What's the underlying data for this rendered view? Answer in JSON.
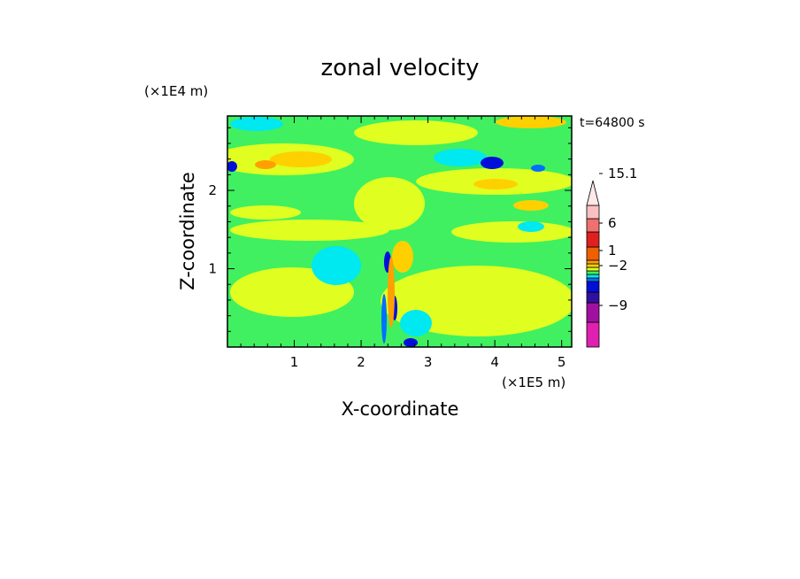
{
  "chart_data": {
    "type": "heatmap",
    "title": "zonal velocity",
    "xlabel": "X-coordinate",
    "ylabel": "Z-coordinate",
    "x_unit": "(×1E5 m)",
    "y_unit": "(×1E4 m)",
    "time_label": "t=64800 s",
    "x_ticks": [
      "1",
      "2",
      "3",
      "4",
      "5"
    ],
    "y_ticks": [
      "1",
      "2"
    ],
    "xlim": [
      0,
      5.15
    ],
    "ylim": [
      0,
      2.95
    ],
    "colorbar": {
      "labels": [
        "15.1",
        "6",
        "1",
        "−2",
        "−9"
      ],
      "bins": [
        {
          "color": "#e020b0"
        },
        {
          "color": "#a010a0"
        },
        {
          "color": "#3010a0"
        },
        {
          "color": "#0010d8"
        },
        {
          "color": "#0070ff"
        },
        {
          "color": "#00e8f0"
        },
        {
          "color": "#40f060"
        },
        {
          "color": "#e0ff20"
        },
        {
          "color": "#ffd000"
        },
        {
          "color": "#ffa000"
        },
        {
          "color": "#f06000"
        },
        {
          "color": "#e02020"
        },
        {
          "color": "#f07070"
        },
        {
          "color": "#f8c0c0"
        },
        {
          "color": "#ffe8e8"
        }
      ]
    },
    "field_colors": {
      "background": "#40f060",
      "positive_weak": "#e0ff20",
      "positive": "#ffd000",
      "positive_strong": "#ffa000",
      "negative_weak": "#00e8f0",
      "negative": "#0070ff",
      "negative_strong": "#0010d8"
    }
  }
}
